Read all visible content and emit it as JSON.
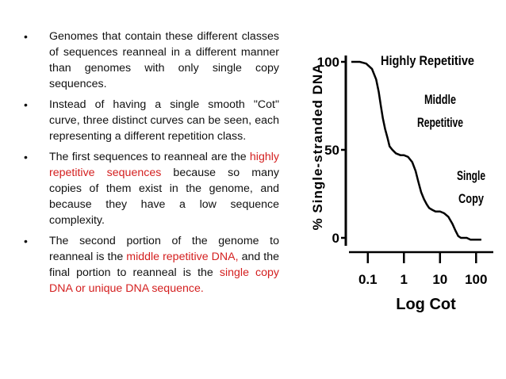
{
  "slide": {
    "bullets": [
      {
        "parts": [
          {
            "text": "Genomes that contain these different classes of sequences reanneal in a different manner than genomes with only single copy sequences.",
            "highlight": false
          }
        ]
      },
      {
        "parts": [
          {
            "text": "Instead of having a single smooth \"Cot\" curve, three distinct curves can be seen, each representing a different repetition class.",
            "highlight": false
          }
        ]
      },
      {
        "parts": [
          {
            "text": "The first sequences to reanneal are the ",
            "highlight": false
          },
          {
            "text": "highly repetitive sequences",
            "highlight": true
          },
          {
            "text": " because so many copies of them exist in the genome, and because they have a low sequence complexity.",
            "highlight": false
          }
        ]
      },
      {
        "parts": [
          {
            "text": "The second portion of the genome to reanneal is the ",
            "highlight": false
          },
          {
            "text": "middle repetitive DNA,",
            "highlight": true
          },
          {
            "text": " and the final portion to reanneal is the ",
            "highlight": false
          },
          {
            "text": "single copy DNA or unique DNA sequence.",
            "highlight": true
          }
        ]
      }
    ],
    "bullet_symbol": "•",
    "highlight_color": "#d42020"
  },
  "chart_data": {
    "type": "line",
    "title": "",
    "xlabel": "Log Cot",
    "ylabel": "% Single-stranded DNA",
    "x_scale": "log",
    "xlim": [
      0.03,
      300
    ],
    "ylim": [
      0,
      100
    ],
    "x_ticks": [
      0.1,
      1,
      10,
      100
    ],
    "x_tick_labels": [
      "0.1",
      "1",
      "10",
      "100"
    ],
    "y_ticks": [
      0,
      50,
      100
    ],
    "y_tick_labels": [
      "0",
      "50",
      "100"
    ],
    "grid": false,
    "series": [
      {
        "x": [
          0.035,
          0.06,
          0.09,
          0.13,
          0.17,
          0.2,
          0.23,
          0.26,
          0.3,
          0.35,
          0.4,
          0.48,
          0.6,
          0.8,
          1.0,
          1.3,
          1.7,
          2.1,
          2.5,
          3.0,
          3.6,
          4.3,
          5.0,
          6.0,
          7.5,
          10,
          13,
          17,
          22,
          27,
          32,
          38,
          45,
          55,
          70,
          90,
          140
        ],
        "y": [
          100,
          100,
          99,
          96,
          90,
          83,
          75,
          68,
          62,
          57,
          52,
          50,
          48,
          47,
          47,
          46,
          43,
          38,
          32,
          26,
          22,
          19,
          17,
          16,
          15,
          15,
          14,
          12,
          8,
          4,
          1,
          0,
          0,
          0,
          -1,
          -1,
          -1
        ]
      }
    ],
    "annotations": [
      {
        "text": "Highly Repetitive"
      },
      {
        "text": "Middle"
      },
      {
        "text": "Repetitive"
      },
      {
        "text": "Single"
      },
      {
        "text": "Copy"
      }
    ],
    "colors": {
      "line": "#000000",
      "text": "#000000"
    }
  }
}
